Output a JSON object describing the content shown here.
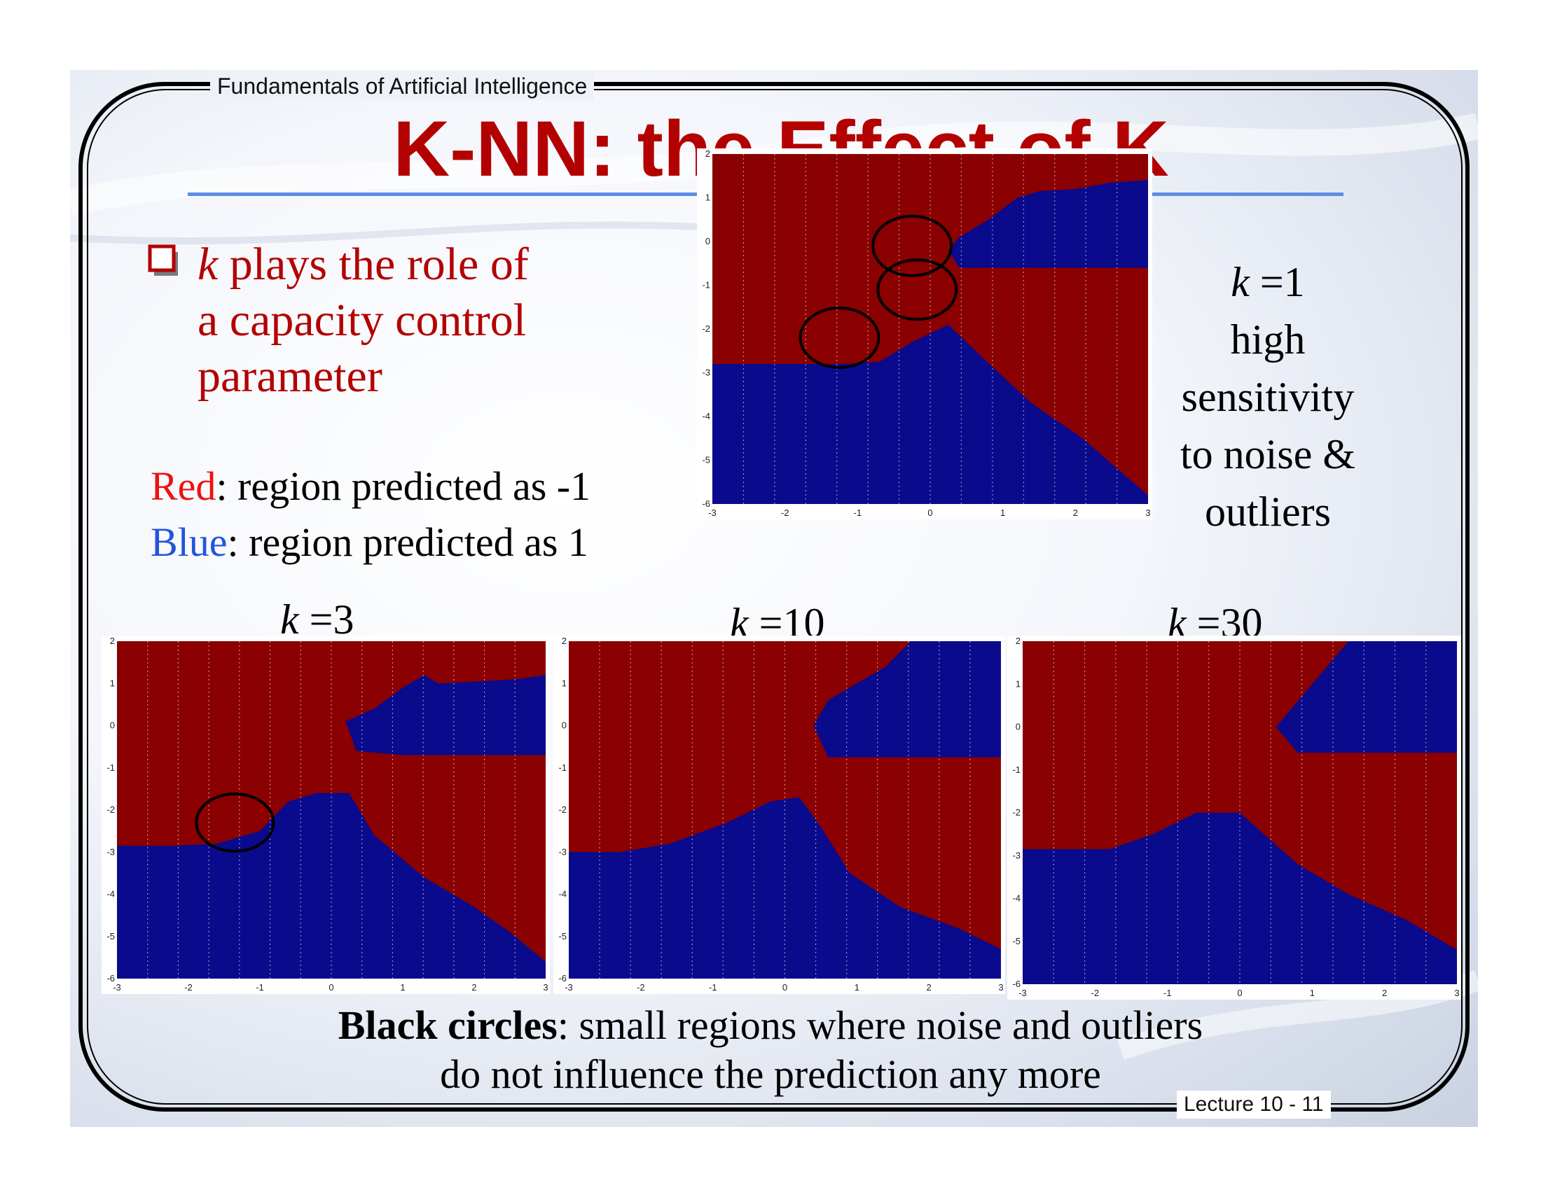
{
  "header": {
    "course": "Fundamentals of Artificial Intelligence"
  },
  "title": "K-NN: the Effect of K",
  "bullet": {
    "icon": "hollow-square-bullet",
    "var": "k",
    "line1_rest": " plays the role of",
    "line2": "a capacity control",
    "line3": "parameter"
  },
  "legend": {
    "red_word": "Red",
    "red_rest": ": region predicted as -1",
    "blue_word": "Blue",
    "blue_rest": ": region predicted as 1"
  },
  "panels": {
    "k1": {
      "k_var": "k",
      "k_rest": " =1"
    },
    "k3": {
      "k_var": "k",
      "k_rest": " =3"
    },
    "k10": {
      "k_var": "k",
      "k_rest": " =10"
    },
    "k30": {
      "k_var": "k",
      "k_rest": " =30"
    }
  },
  "k1_description": [
    "high",
    "sensitivity",
    "to noise &",
    "outliers"
  ],
  "bottom_note": {
    "bold": "Black circles",
    "rest": ": small regions where noise and outliers",
    "line2": "do not influence the prediction any more"
  },
  "footer": {
    "lecture": "Lecture 10 - 11"
  },
  "colors": {
    "red_region": "#8b0000",
    "blue_region": "#0a0a8c",
    "title": "#b30000"
  },
  "chart_data": [
    {
      "type": "heatmap",
      "name": "k=1 decision regions",
      "xlim": [
        -3,
        3
      ],
      "ylim": [
        -6,
        2
      ],
      "x_ticks": [
        "-3",
        "-2",
        "-1",
        "0",
        "1",
        "2",
        "3"
      ],
      "y_ticks": [
        "2",
        "1",
        "0",
        "-1",
        "-2",
        "-3",
        "-4",
        "-5",
        "-6"
      ],
      "colors": {
        "red": "#8b0000",
        "blue": "#0a0a8c"
      },
      "blue_polygons": [
        [
          [
            -3,
            -6
          ],
          [
            3,
            -6
          ],
          [
            3,
            -5.8
          ],
          [
            2.65,
            -5.3
          ],
          [
            2.1,
            -4.5
          ],
          [
            1.4,
            -3.7
          ],
          [
            0.75,
            -2.7
          ],
          [
            0.25,
            -1.9
          ],
          [
            -0.25,
            -2.3
          ],
          [
            -0.7,
            -2.75
          ],
          [
            -1.2,
            -2.8
          ],
          [
            -1.7,
            -2.8
          ],
          [
            -2.2,
            -2.8
          ],
          [
            -3,
            -2.8
          ]
        ],
        [
          [
            3,
            1.4
          ],
          [
            2.5,
            1.35
          ],
          [
            2.0,
            1.2
          ],
          [
            1.5,
            1.15
          ],
          [
            1.2,
            1.0
          ],
          [
            0.8,
            0.5
          ],
          [
            0.4,
            0.1
          ],
          [
            0.25,
            -0.2
          ],
          [
            0.4,
            -0.6
          ],
          [
            1.0,
            -0.6
          ],
          [
            3,
            -0.6
          ]
        ]
      ],
      "circles": [
        [
          -0.25,
          -0.1
        ],
        [
          -0.18,
          -1.1
        ],
        [
          -1.25,
          -2.2
        ]
      ]
    },
    {
      "type": "heatmap",
      "name": "k=3 decision regions",
      "xlim": [
        -3,
        3
      ],
      "ylim": [
        -6,
        2
      ],
      "x_ticks": [
        "-3",
        "-2",
        "-1",
        "0",
        "1",
        "2",
        "3"
      ],
      "y_ticks": [
        "2",
        "1",
        "0",
        "-1",
        "-2",
        "-3",
        "-4",
        "-5",
        "-6"
      ],
      "colors": {
        "red": "#8b0000",
        "blue": "#0a0a8c"
      },
      "blue_polygons": [
        [
          [
            -3,
            -6
          ],
          [
            3,
            -6
          ],
          [
            3,
            -5.6
          ],
          [
            2.5,
            -4.9
          ],
          [
            2.0,
            -4.3
          ],
          [
            1.3,
            -3.6
          ],
          [
            0.6,
            -2.6
          ],
          [
            0.25,
            -1.6
          ],
          [
            -0.2,
            -1.6
          ],
          [
            -0.6,
            -1.8
          ],
          [
            -1.0,
            -2.5
          ],
          [
            -1.6,
            -2.8
          ],
          [
            -2.2,
            -2.85
          ],
          [
            -3,
            -2.85
          ]
        ],
        [
          [
            3,
            1.2
          ],
          [
            2.6,
            1.1
          ],
          [
            2.1,
            1.05
          ],
          [
            1.5,
            1.0
          ],
          [
            1.3,
            1.2
          ],
          [
            1.0,
            0.9
          ],
          [
            0.6,
            0.4
          ],
          [
            0.2,
            0.1
          ],
          [
            0.35,
            -0.6
          ],
          [
            1.0,
            -0.7
          ],
          [
            3,
            -0.7
          ]
        ]
      ],
      "circles": [
        [
          -1.35,
          -2.3
        ]
      ]
    },
    {
      "type": "heatmap",
      "name": "k=10 decision regions",
      "xlim": [
        -3,
        3
      ],
      "ylim": [
        -6,
        2
      ],
      "x_ticks": [
        "-3",
        "-2",
        "-1",
        "0",
        "1",
        "2",
        "3"
      ],
      "y_ticks": [
        "2",
        "1",
        "0",
        "-1",
        "-2",
        "-3",
        "-4",
        "-5",
        "-6"
      ],
      "colors": {
        "red": "#8b0000",
        "blue": "#0a0a8c"
      },
      "blue_polygons": [
        [
          [
            -3,
            -6
          ],
          [
            3,
            -6
          ],
          [
            3,
            -5.3
          ],
          [
            2.4,
            -4.8
          ],
          [
            1.6,
            -4.3
          ],
          [
            0.9,
            -3.5
          ],
          [
            0.5,
            -2.4
          ],
          [
            0.2,
            -1.7
          ],
          [
            -0.2,
            -1.8
          ],
          [
            -0.8,
            -2.3
          ],
          [
            -1.6,
            -2.8
          ],
          [
            -2.3,
            -3.0
          ],
          [
            -3,
            -3.0
          ]
        ],
        [
          [
            3,
            2
          ],
          [
            1.75,
            2
          ],
          [
            1.4,
            1.4
          ],
          [
            1.0,
            1.0
          ],
          [
            0.6,
            0.6
          ],
          [
            0.4,
            0.0
          ],
          [
            0.6,
            -0.75
          ],
          [
            3,
            -0.75
          ]
        ]
      ],
      "circles": []
    },
    {
      "type": "heatmap",
      "name": "k=30 decision regions",
      "xlim": [
        -3,
        3
      ],
      "ylim": [
        -6,
        2
      ],
      "x_ticks": [
        "-3",
        "-2",
        "-1",
        "0",
        "1",
        "2",
        "3"
      ],
      "y_ticks": [
        "2",
        "1",
        "0",
        "-1",
        "-2",
        "-3",
        "-4",
        "-5",
        "-6"
      ],
      "colors": {
        "red": "#8b0000",
        "blue": "#0a0a8c"
      },
      "blue_polygons": [
        [
          [
            -3,
            -6
          ],
          [
            3,
            -6
          ],
          [
            3,
            -5.2
          ],
          [
            2.3,
            -4.5
          ],
          [
            1.5,
            -3.9
          ],
          [
            0.8,
            -3.2
          ],
          [
            0.0,
            -2.0
          ],
          [
            -0.6,
            -2.0
          ],
          [
            -1.2,
            -2.5
          ],
          [
            -1.8,
            -2.85
          ],
          [
            -3,
            -2.85
          ]
        ],
        [
          [
            3,
            2
          ],
          [
            1.5,
            2
          ],
          [
            1.2,
            1.4
          ],
          [
            0.8,
            0.6
          ],
          [
            0.5,
            0.0
          ],
          [
            0.8,
            -0.6
          ],
          [
            3,
            -0.6
          ]
        ]
      ],
      "circles": []
    }
  ]
}
